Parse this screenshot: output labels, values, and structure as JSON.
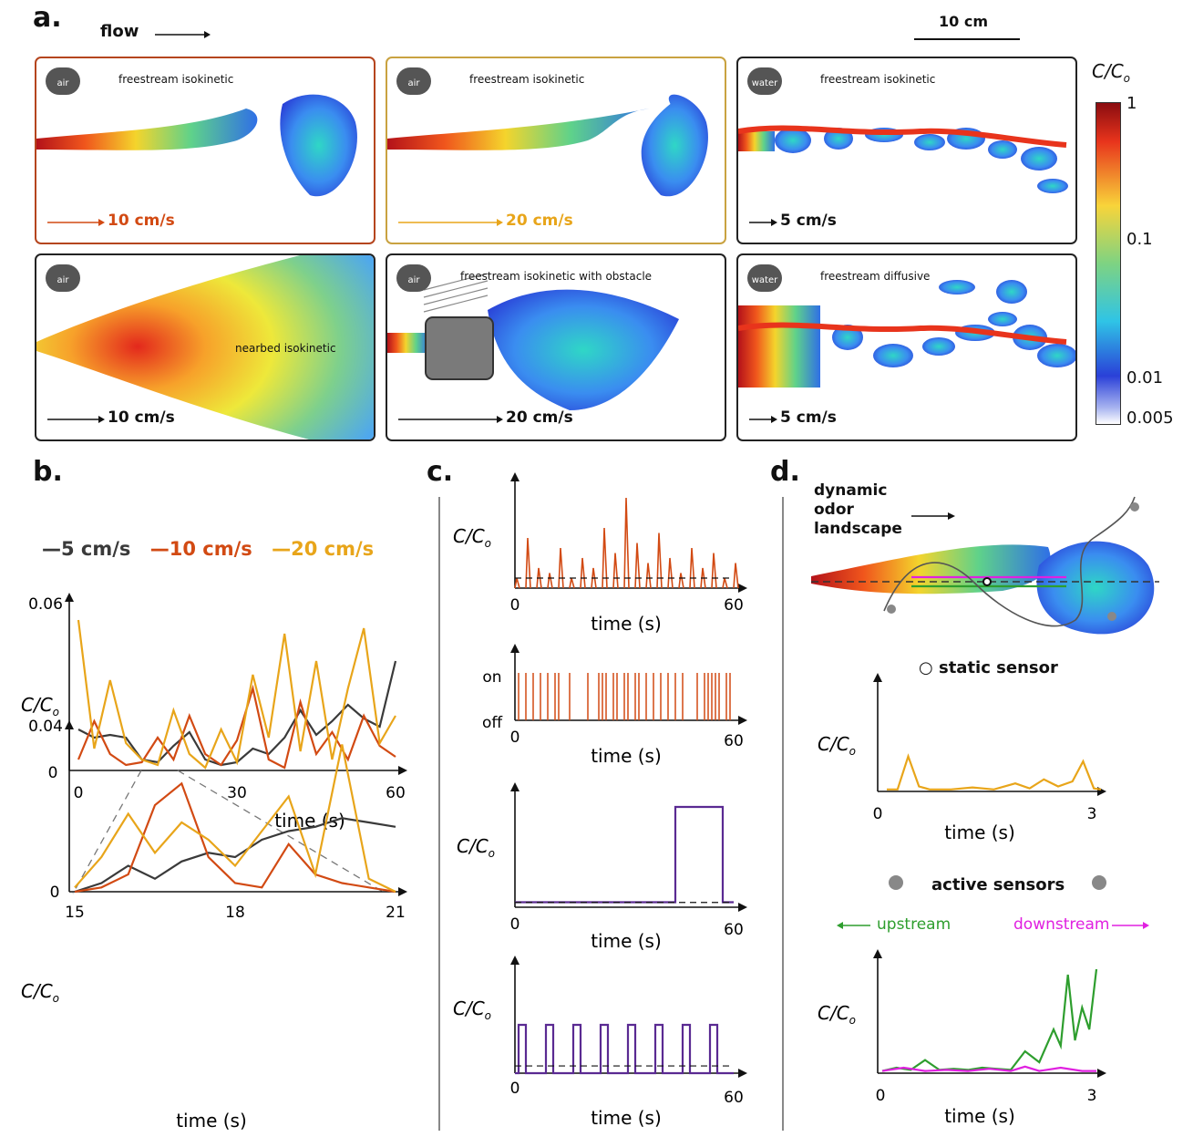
{
  "panel_labels": {
    "a": "a.",
    "b": "b.",
    "c": "c.",
    "d": "d."
  },
  "panel_a": {
    "flow_label": "flow",
    "scale_label": "10 cm",
    "colorbar": {
      "title": "C/C",
      "title_sub": "o",
      "ticks": [
        "1",
        "0.1",
        "0.01",
        "0.005"
      ]
    },
    "panels": [
      {
        "medium": "air",
        "title": "freestream isokinetic",
        "speed": "10 cm/s",
        "color": "#d24a13"
      },
      {
        "medium": "air",
        "title": "freestream isokinetic",
        "speed": "20 cm/s",
        "color": "#e8a51a"
      },
      {
        "medium": "water",
        "title": "freestream isokinetic",
        "speed": "5 cm/s",
        "color": "#111111"
      },
      {
        "medium": "air",
        "title": "nearbed isokinetic",
        "speed": "10 cm/s",
        "color": "#111111"
      },
      {
        "medium": "air",
        "title": "freestream isokinetic with obstacle",
        "speed": "20 cm/s",
        "color": "#111111"
      },
      {
        "medium": "water",
        "title": "freestream diffusive",
        "speed": "5 cm/s",
        "color": "#111111"
      }
    ]
  },
  "panel_b": {
    "legend": [
      {
        "name": "5 cm/s",
        "color": "#3a3a3a"
      },
      {
        "name": "10 cm/s",
        "color": "#d24a13"
      },
      {
        "name": "20 cm/s",
        "color": "#e8a51a"
      }
    ],
    "ylabel": "C/C",
    "ylabel_sub": "o",
    "xlabel": "time (s)"
  },
  "panel_c": {
    "ylabel": "C/C",
    "ylabel_sub": "o",
    "xlabel": "time (s)",
    "on_label": "on",
    "off_label": "off"
  },
  "panel_d": {
    "landscape_label": [
      "dynamic",
      "odor",
      "landscape"
    ],
    "static_label": "static sensor",
    "active_label": "active sensors",
    "upstream": "upstream",
    "downstream": "downstream",
    "ylabel": "C/C",
    "ylabel_sub": "o",
    "xlabel": "time (s)"
  },
  "chart_data": [
    {
      "type": "line",
      "panel": "b-top",
      "x_range": [
        0,
        60
      ],
      "ylim": [
        0,
        0.06
      ],
      "x_ticks": [
        "0",
        "30",
        "60"
      ],
      "y_ticks": [
        "0",
        "0.06"
      ],
      "series": [
        {
          "name": "5 cm/s",
          "color": "#3a3a3a",
          "x": [
            0,
            3,
            6,
            9,
            12,
            15,
            18,
            21,
            24,
            27,
            30,
            33,
            36,
            39,
            42,
            45,
            48,
            51,
            54,
            57,
            60
          ],
          "values": [
            0.015,
            0.012,
            0.013,
            0.012,
            0.004,
            0.003,
            0.009,
            0.014,
            0.004,
            0.002,
            0.003,
            0.008,
            0.006,
            0.012,
            0.022,
            0.013,
            0.018,
            0.024,
            0.019,
            0.016,
            0.04
          ]
        },
        {
          "name": "10 cm/s",
          "color": "#d24a13",
          "x": [
            0,
            3,
            6,
            9,
            12,
            15,
            18,
            21,
            24,
            27,
            30,
            33,
            36,
            39,
            42,
            45,
            48,
            51,
            54,
            57,
            60
          ],
          "values": [
            0.004,
            0.018,
            0.006,
            0.002,
            0.003,
            0.012,
            0.004,
            0.02,
            0.006,
            0.002,
            0.011,
            0.03,
            0.004,
            0.001,
            0.025,
            0.006,
            0.014,
            0.004,
            0.02,
            0.009,
            0.005
          ]
        },
        {
          "name": "20 cm/s",
          "color": "#e8a51a",
          "x": [
            0,
            3,
            6,
            9,
            12,
            15,
            18,
            21,
            24,
            27,
            30,
            33,
            36,
            39,
            42,
            45,
            48,
            51,
            54,
            57,
            60
          ],
          "values": [
            0.055,
            0.008,
            0.033,
            0.01,
            0.004,
            0.002,
            0.022,
            0.006,
            0.001,
            0.015,
            0.003,
            0.035,
            0.012,
            0.05,
            0.007,
            0.04,
            0.004,
            0.03,
            0.052,
            0.01,
            0.02
          ]
        }
      ]
    },
    {
      "type": "line",
      "panel": "b-zoom",
      "x_range": [
        15,
        21
      ],
      "ylim": [
        0,
        0.04
      ],
      "x_ticks": [
        "15",
        "18",
        "21"
      ],
      "y_ticks": [
        "0",
        "0.04"
      ],
      "series": [
        {
          "name": "5 cm/s",
          "color": "#3a3a3a",
          "x": [
            15,
            15.5,
            16,
            16.5,
            17,
            17.5,
            18,
            18.5,
            19,
            19.5,
            20,
            20.5,
            21
          ],
          "values": [
            0.0,
            0.002,
            0.006,
            0.003,
            0.007,
            0.009,
            0.008,
            0.012,
            0.014,
            0.015,
            0.017,
            0.016,
            0.015
          ]
        },
        {
          "name": "10 cm/s",
          "color": "#d24a13",
          "x": [
            15,
            15.5,
            16,
            16.5,
            17,
            17.5,
            18,
            18.5,
            19,
            19.5,
            20,
            20.5,
            21
          ],
          "values": [
            0.0,
            0.001,
            0.004,
            0.02,
            0.025,
            0.008,
            0.002,
            0.001,
            0.011,
            0.004,
            0.002,
            0.001,
            0.0
          ]
        },
        {
          "name": "20 cm/s",
          "color": "#e8a51a",
          "x": [
            15,
            15.5,
            16,
            16.5,
            17,
            17.5,
            18,
            18.5,
            19,
            19.5,
            20,
            20.5,
            21
          ],
          "values": [
            0.001,
            0.008,
            0.018,
            0.009,
            0.016,
            0.012,
            0.006,
            0.014,
            0.022,
            0.004,
            0.034,
            0.003,
            0.0
          ]
        }
      ]
    },
    {
      "type": "line",
      "panel": "c-1",
      "x_range": [
        0,
        60
      ],
      "x_ticks": [
        "0",
        "60"
      ],
      "series": [
        {
          "color": "#d24a13",
          "x": [
            0,
            3,
            6,
            9,
            12,
            15,
            18,
            21,
            24,
            27,
            30,
            33,
            36,
            39,
            42,
            45,
            48,
            51,
            54,
            57,
            60
          ],
          "values": [
            0.1,
            0.5,
            0.2,
            0.15,
            0.4,
            0.1,
            0.3,
            0.2,
            0.6,
            0.35,
            0.9,
            0.45,
            0.25,
            0.55,
            0.3,
            0.15,
            0.4,
            0.2,
            0.35,
            0.1,
            0.25
          ]
        }
      ],
      "threshold": 0.05
    },
    {
      "type": "line",
      "panel": "c-2",
      "x_range": [
        0,
        60
      ],
      "x_ticks": [
        "0",
        "60"
      ],
      "description_levels": [
        "off",
        "on"
      ],
      "events": [
        1,
        3,
        5,
        7,
        9,
        11,
        12,
        15,
        20,
        23,
        24,
        25,
        27,
        28,
        30,
        31,
        33,
        34,
        36,
        38,
        40,
        42,
        44,
        46,
        50,
        52,
        53,
        54,
        55,
        56,
        58,
        59
      ]
    },
    {
      "type": "line",
      "panel": "c-3",
      "x_range": [
        0,
        60
      ],
      "x_ticks": [
        "0",
        "60"
      ],
      "series": [
        {
          "color": "#5a2a92",
          "x": [
            0,
            44,
            44,
            57,
            57,
            60
          ],
          "values": [
            0.05,
            0.05,
            1,
            1,
            0.05,
            0.05
          ]
        }
      ],
      "threshold": 0.08
    },
    {
      "type": "line",
      "panel": "c-4",
      "x_range": [
        0,
        60
      ],
      "x_ticks": [
        "0",
        "60"
      ],
      "series": [
        {
          "color": "#5a2a92",
          "pulse_period": 7.5,
          "pulse_width": 2,
          "n_pulses": 8,
          "high": 1,
          "low": 0
        }
      ],
      "threshold": 0.15
    },
    {
      "type": "line",
      "panel": "d-static",
      "x_range": [
        0,
        3
      ],
      "x_ticks": [
        "0",
        "3"
      ],
      "series": [
        {
          "name": "static sensor",
          "color": "#e8a51a",
          "x": [
            0,
            0.15,
            0.3,
            0.45,
            0.6,
            0.9,
            1.2,
            1.5,
            1.8,
            2.0,
            2.2,
            2.4,
            2.6,
            2.75,
            2.9,
            3.0
          ],
          "values": [
            0.02,
            0.02,
            0.35,
            0.05,
            0.02,
            0.02,
            0.04,
            0.02,
            0.08,
            0.03,
            0.12,
            0.05,
            0.1,
            0.3,
            0.03,
            0.02
          ]
        }
      ]
    },
    {
      "type": "line",
      "panel": "d-active",
      "x_range": [
        0,
        3
      ],
      "x_ticks": [
        "0",
        "3"
      ],
      "series": [
        {
          "name": "upstream",
          "color": "#2e9e2e",
          "x": [
            0,
            0.2,
            0.4,
            0.6,
            0.8,
            1.0,
            1.2,
            1.4,
            1.6,
            1.8,
            2.0,
            2.2,
            2.4,
            2.5,
            2.6,
            2.7,
            2.8,
            2.9,
            3.0
          ],
          "values": [
            0.02,
            0.05,
            0.03,
            0.12,
            0.03,
            0.04,
            0.03,
            0.05,
            0.04,
            0.03,
            0.2,
            0.1,
            0.4,
            0.25,
            0.9,
            0.3,
            0.6,
            0.4,
            0.95
          ]
        },
        {
          "name": "downstream",
          "color": "#e020e0",
          "x": [
            0,
            0.3,
            0.6,
            0.9,
            1.2,
            1.5,
            1.8,
            2.0,
            2.2,
            2.5,
            2.8,
            3.0
          ],
          "values": [
            0.02,
            0.05,
            0.02,
            0.03,
            0.02,
            0.04,
            0.02,
            0.06,
            0.02,
            0.05,
            0.02,
            0.02
          ]
        }
      ]
    }
  ]
}
